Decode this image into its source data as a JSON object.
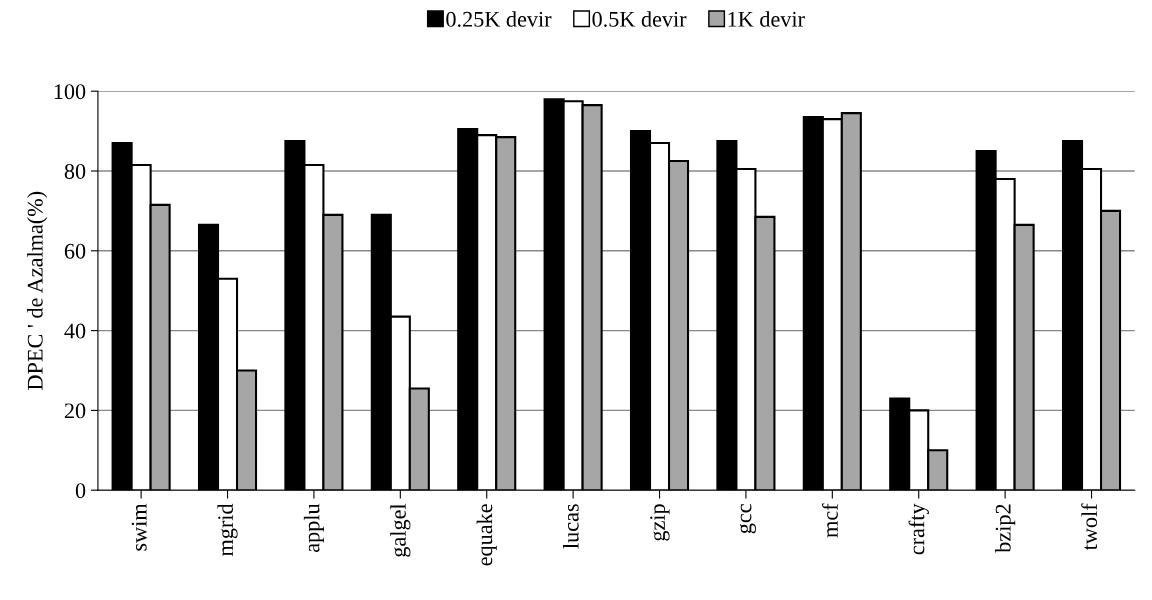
{
  "chart_data": {
    "type": "bar",
    "ylabel": "DPEC ' de Azalma(%)",
    "categories": [
      "swim",
      "mgrid",
      "applu",
      "galgel",
      "equake",
      "lucas",
      "gzip",
      "gcc",
      "mcf",
      "crafty",
      "bzip2",
      "twolf"
    ],
    "series": [
      {
        "name": "0.25K devir",
        "color": "#000000",
        "values": [
          87,
          66.5,
          87.5,
          69,
          90.5,
          98,
          90,
          87.5,
          93.5,
          23,
          85,
          87.5
        ]
      },
      {
        "name": "0.5K devir",
        "color": "#ffffff",
        "values": [
          81.5,
          53,
          81.5,
          43.5,
          89,
          97.5,
          87,
          80.5,
          93,
          20,
          78,
          80.5
        ]
      },
      {
        "name": "1K devir",
        "color": "#a6a6a6",
        "values": [
          71.5,
          30,
          69,
          25.5,
          88.5,
          96.5,
          82.5,
          68.5,
          94.5,
          10,
          66.5,
          70
        ]
      }
    ],
    "ylim": [
      0,
      100
    ],
    "yticks": [
      0,
      20,
      40,
      60,
      80,
      100
    ],
    "grid": "y",
    "legend": "top"
  }
}
